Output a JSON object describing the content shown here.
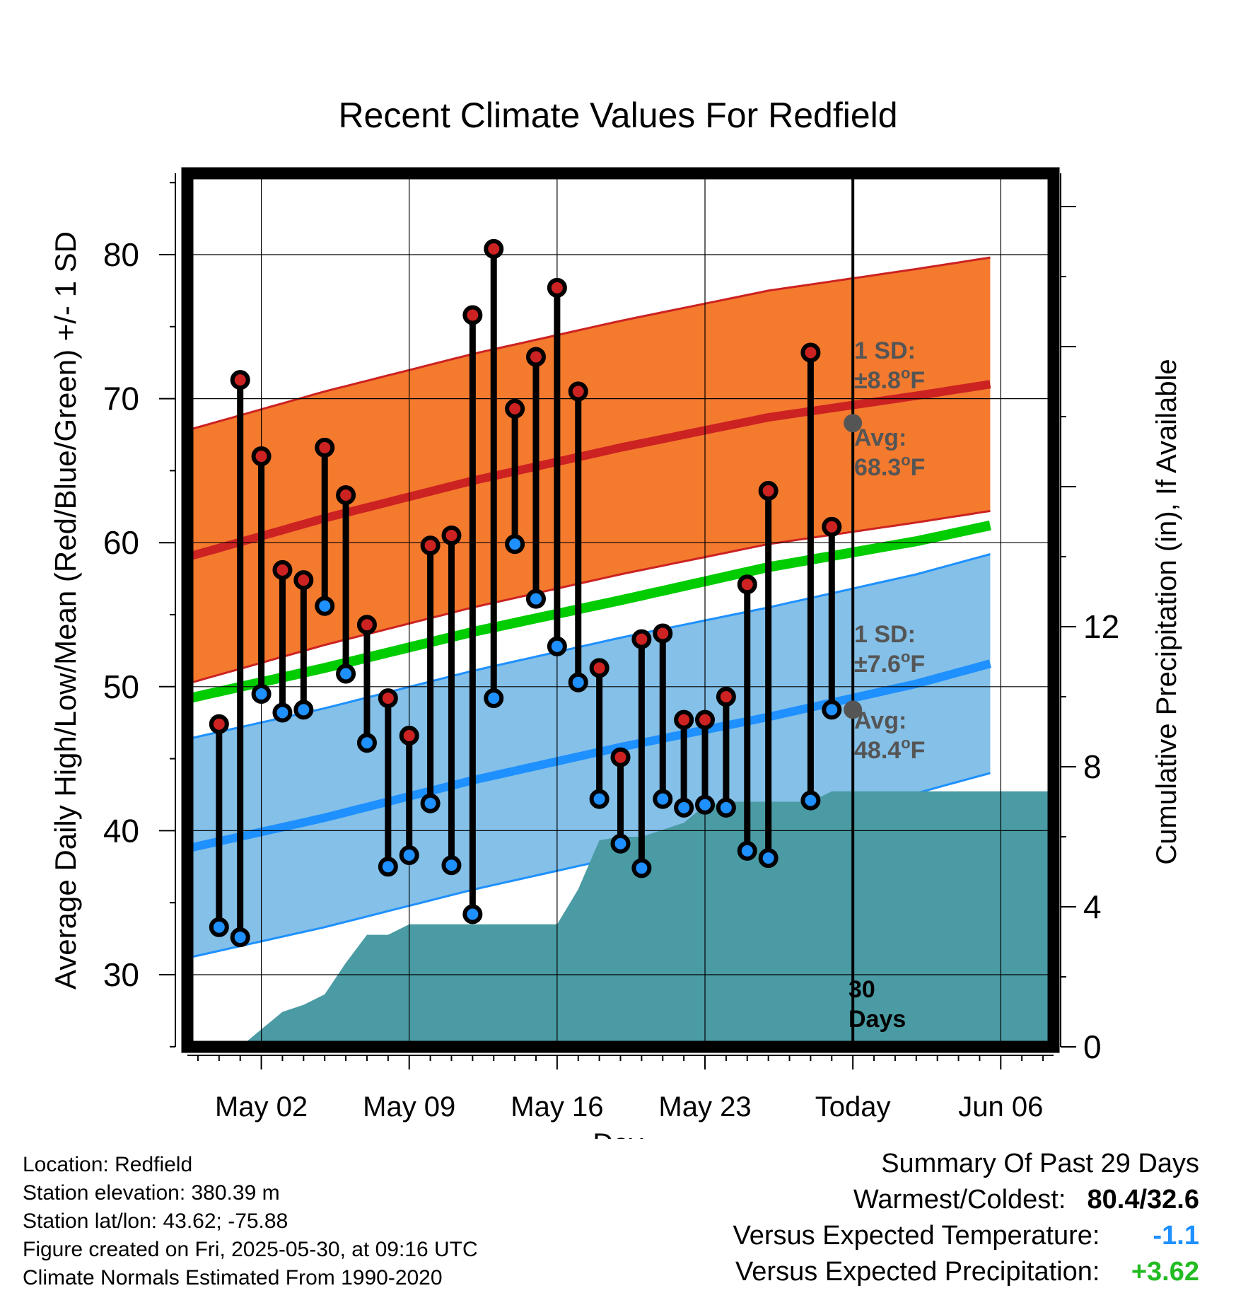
{
  "chart_data": {
    "type": "line",
    "title": "Recent Climate Values For Redfield",
    "xlabel": "Day",
    "ylabel": "Average Daily High/Low/Mean (Red/Blue/Green) +/- 1 SD",
    "y2label": "Cumulative Precipitation (in), If Available",
    "x_range": [
      "2025-04-28",
      "2025-06-09"
    ],
    "ylim": [
      25,
      86
    ],
    "y2lim": [
      0,
      25
    ],
    "grid": true,
    "x_ticks": [
      {
        "date": "2025-05-02",
        "label": "May 02"
      },
      {
        "date": "2025-05-09",
        "label": "May 09"
      },
      {
        "date": "2025-05-16",
        "label": "May 16"
      },
      {
        "date": "2025-05-23",
        "label": "May 23"
      },
      {
        "date": "2025-05-30",
        "label": "Today"
      },
      {
        "date": "2025-06-06",
        "label": "Jun 06"
      }
    ],
    "y_ticks": [
      30,
      40,
      50,
      60,
      70,
      80
    ],
    "y2_ticks": [
      0,
      4,
      8,
      12
    ],
    "today": "2025-05-30",
    "today_label": "30\nDays",
    "normals": {
      "high": {
        "mean": [
          [
            -2.5,
            57.7
          ],
          [
            0.0,
            58.8
          ],
          [
            7.0,
            61.7
          ],
          [
            14.0,
            64.3
          ],
          [
            21.0,
            66.6
          ],
          [
            28.0,
            68.7
          ],
          [
            35.0,
            70.2
          ],
          [
            38.5,
            71.0
          ]
        ],
        "sd": 8.8,
        "avg_today": 68.3,
        "sd_label": "1 SD:\n±8.8°F",
        "avg_label": "Avg:\n68.3°F",
        "color": "#cc2222",
        "band_color": "#f47a2e"
      },
      "low": {
        "mean": [
          [
            -2.5,
            37.8
          ],
          [
            0.0,
            38.6
          ],
          [
            7.0,
            40.9
          ],
          [
            14.0,
            43.5
          ],
          [
            21.0,
            45.8
          ],
          [
            28.0,
            47.9
          ],
          [
            35.0,
            50.2
          ],
          [
            38.5,
            51.6
          ]
        ],
        "sd": 7.6,
        "avg_today": 48.4,
        "sd_label": "1 SD:\n±7.6°F",
        "avg_label": "Avg:\n48.4°F",
        "color": "#1e90ff",
        "band_color": "#84c0e8"
      },
      "mean": {
        "values": [
          [
            -2.5,
            47.9
          ],
          [
            0.0,
            49.0
          ],
          [
            7.0,
            51.3
          ],
          [
            14.0,
            53.8
          ],
          [
            21.0,
            56.0
          ],
          [
            28.0,
            58.3
          ],
          [
            35.0,
            60.1
          ],
          [
            38.5,
            61.2
          ]
        ],
        "color": "#00cc00"
      }
    },
    "series": [
      {
        "name": "High",
        "color": "#cc2222",
        "values": [
          [
            "2025-04-30",
            47.4
          ],
          [
            "2025-05-01",
            71.3
          ],
          [
            "2025-05-02",
            66.0
          ],
          [
            "2025-05-03",
            58.1
          ],
          [
            "2025-05-04",
            57.4
          ],
          [
            "2025-05-05",
            66.6
          ],
          [
            "2025-05-06",
            63.3
          ],
          [
            "2025-05-07",
            54.3
          ],
          [
            "2025-05-08",
            49.2
          ],
          [
            "2025-05-09",
            46.6
          ],
          [
            "2025-05-10",
            59.8
          ],
          [
            "2025-05-11",
            60.5
          ],
          [
            "2025-05-12",
            75.8
          ],
          [
            "2025-05-13",
            80.4
          ],
          [
            "2025-05-14",
            69.3
          ],
          [
            "2025-05-15",
            72.9
          ],
          [
            "2025-05-16",
            77.7
          ],
          [
            "2025-05-17",
            70.5
          ],
          [
            "2025-05-18",
            51.3
          ],
          [
            "2025-05-19",
            45.1
          ],
          [
            "2025-05-20",
            53.3
          ],
          [
            "2025-05-21",
            53.7
          ],
          [
            "2025-05-22",
            47.7
          ],
          [
            "2025-05-23",
            47.7
          ],
          [
            "2025-05-24",
            49.3
          ],
          [
            "2025-05-25",
            57.1
          ],
          [
            "2025-05-26",
            63.6
          ],
          [
            "2025-05-28",
            73.2
          ],
          [
            "2025-05-29",
            61.1
          ]
        ]
      },
      {
        "name": "Low",
        "color": "#1e90ff",
        "values": [
          [
            "2025-04-30",
            33.3
          ],
          [
            "2025-05-01",
            32.6
          ],
          [
            "2025-05-02",
            49.5
          ],
          [
            "2025-05-03",
            48.2
          ],
          [
            "2025-05-04",
            48.4
          ],
          [
            "2025-05-05",
            55.6
          ],
          [
            "2025-05-06",
            50.9
          ],
          [
            "2025-05-07",
            46.1
          ],
          [
            "2025-05-08",
            37.5
          ],
          [
            "2025-05-09",
            38.3
          ],
          [
            "2025-05-10",
            41.9
          ],
          [
            "2025-05-11",
            37.6
          ],
          [
            "2025-05-12",
            34.2
          ],
          [
            "2025-05-13",
            49.2
          ],
          [
            "2025-05-14",
            59.9
          ],
          [
            "2025-05-15",
            56.1
          ],
          [
            "2025-05-16",
            52.8
          ],
          [
            "2025-05-17",
            50.3
          ],
          [
            "2025-05-18",
            42.2
          ],
          [
            "2025-05-19",
            39.1
          ],
          [
            "2025-05-20",
            37.4
          ],
          [
            "2025-05-21",
            42.2
          ],
          [
            "2025-05-22",
            41.6
          ],
          [
            "2025-05-23",
            41.8
          ],
          [
            "2025-05-24",
            41.6
          ],
          [
            "2025-05-25",
            38.6
          ],
          [
            "2025-05-26",
            38.1
          ],
          [
            "2025-05-28",
            42.1
          ],
          [
            "2025-05-29",
            48.4
          ]
        ]
      }
    ],
    "precipitation": {
      "name": "Cumulative Precipitation",
      "color": "#4a9ba4",
      "values": [
        [
          "2025-05-01",
          0.0
        ],
        [
          "2025-05-02",
          0.5
        ],
        [
          "2025-05-03",
          1.0
        ],
        [
          "2025-05-04",
          1.2
        ],
        [
          "2025-05-05",
          1.5
        ],
        [
          "2025-05-06",
          2.4
        ],
        [
          "2025-05-07",
          3.2
        ],
        [
          "2025-05-08",
          3.2
        ],
        [
          "2025-05-09",
          3.5
        ],
        [
          "2025-05-10",
          3.5
        ],
        [
          "2025-05-11",
          3.5
        ],
        [
          "2025-05-12",
          3.5
        ],
        [
          "2025-05-13",
          3.5
        ],
        [
          "2025-05-14",
          3.5
        ],
        [
          "2025-05-15",
          3.5
        ],
        [
          "2025-05-16",
          3.5
        ],
        [
          "2025-05-17",
          4.5
        ],
        [
          "2025-05-18",
          5.9
        ],
        [
          "2025-05-19",
          6.0
        ],
        [
          "2025-05-20",
          6.0
        ],
        [
          "2025-05-21",
          6.2
        ],
        [
          "2025-05-22",
          6.4
        ],
        [
          "2025-05-23",
          6.9
        ],
        [
          "2025-05-24",
          7.0
        ],
        [
          "2025-05-25",
          7.0
        ],
        [
          "2025-05-26",
          7.0
        ],
        [
          "2025-05-27",
          7.0
        ],
        [
          "2025-05-28",
          7.0
        ],
        [
          "2025-05-29",
          7.3
        ],
        [
          "2025-05-30",
          7.3
        ],
        [
          "2025-06-09",
          7.3
        ]
      ]
    }
  },
  "info": {
    "location": "Location: Redfield",
    "elevation": "Station elevation: 380.39 m",
    "latlon": "Station lat/lon: 43.62; -75.88",
    "created": "Figure created on Fri, 2025-05-30, at 09:16 UTC",
    "normals": "Climate Normals Estimated From 1990-2020"
  },
  "summary": {
    "title": "Summary Of Past 29 Days",
    "warm_cold_label": "Warmest/Coldest:",
    "warm_cold_value": "80.4/32.6",
    "temp_label": "Versus Expected Temperature:",
    "temp_value": "-1.1",
    "temp_color": "#1e90ff",
    "precip_label": "Versus Expected Precipitation:",
    "precip_value": "+3.62",
    "precip_color": "#22bb22"
  }
}
